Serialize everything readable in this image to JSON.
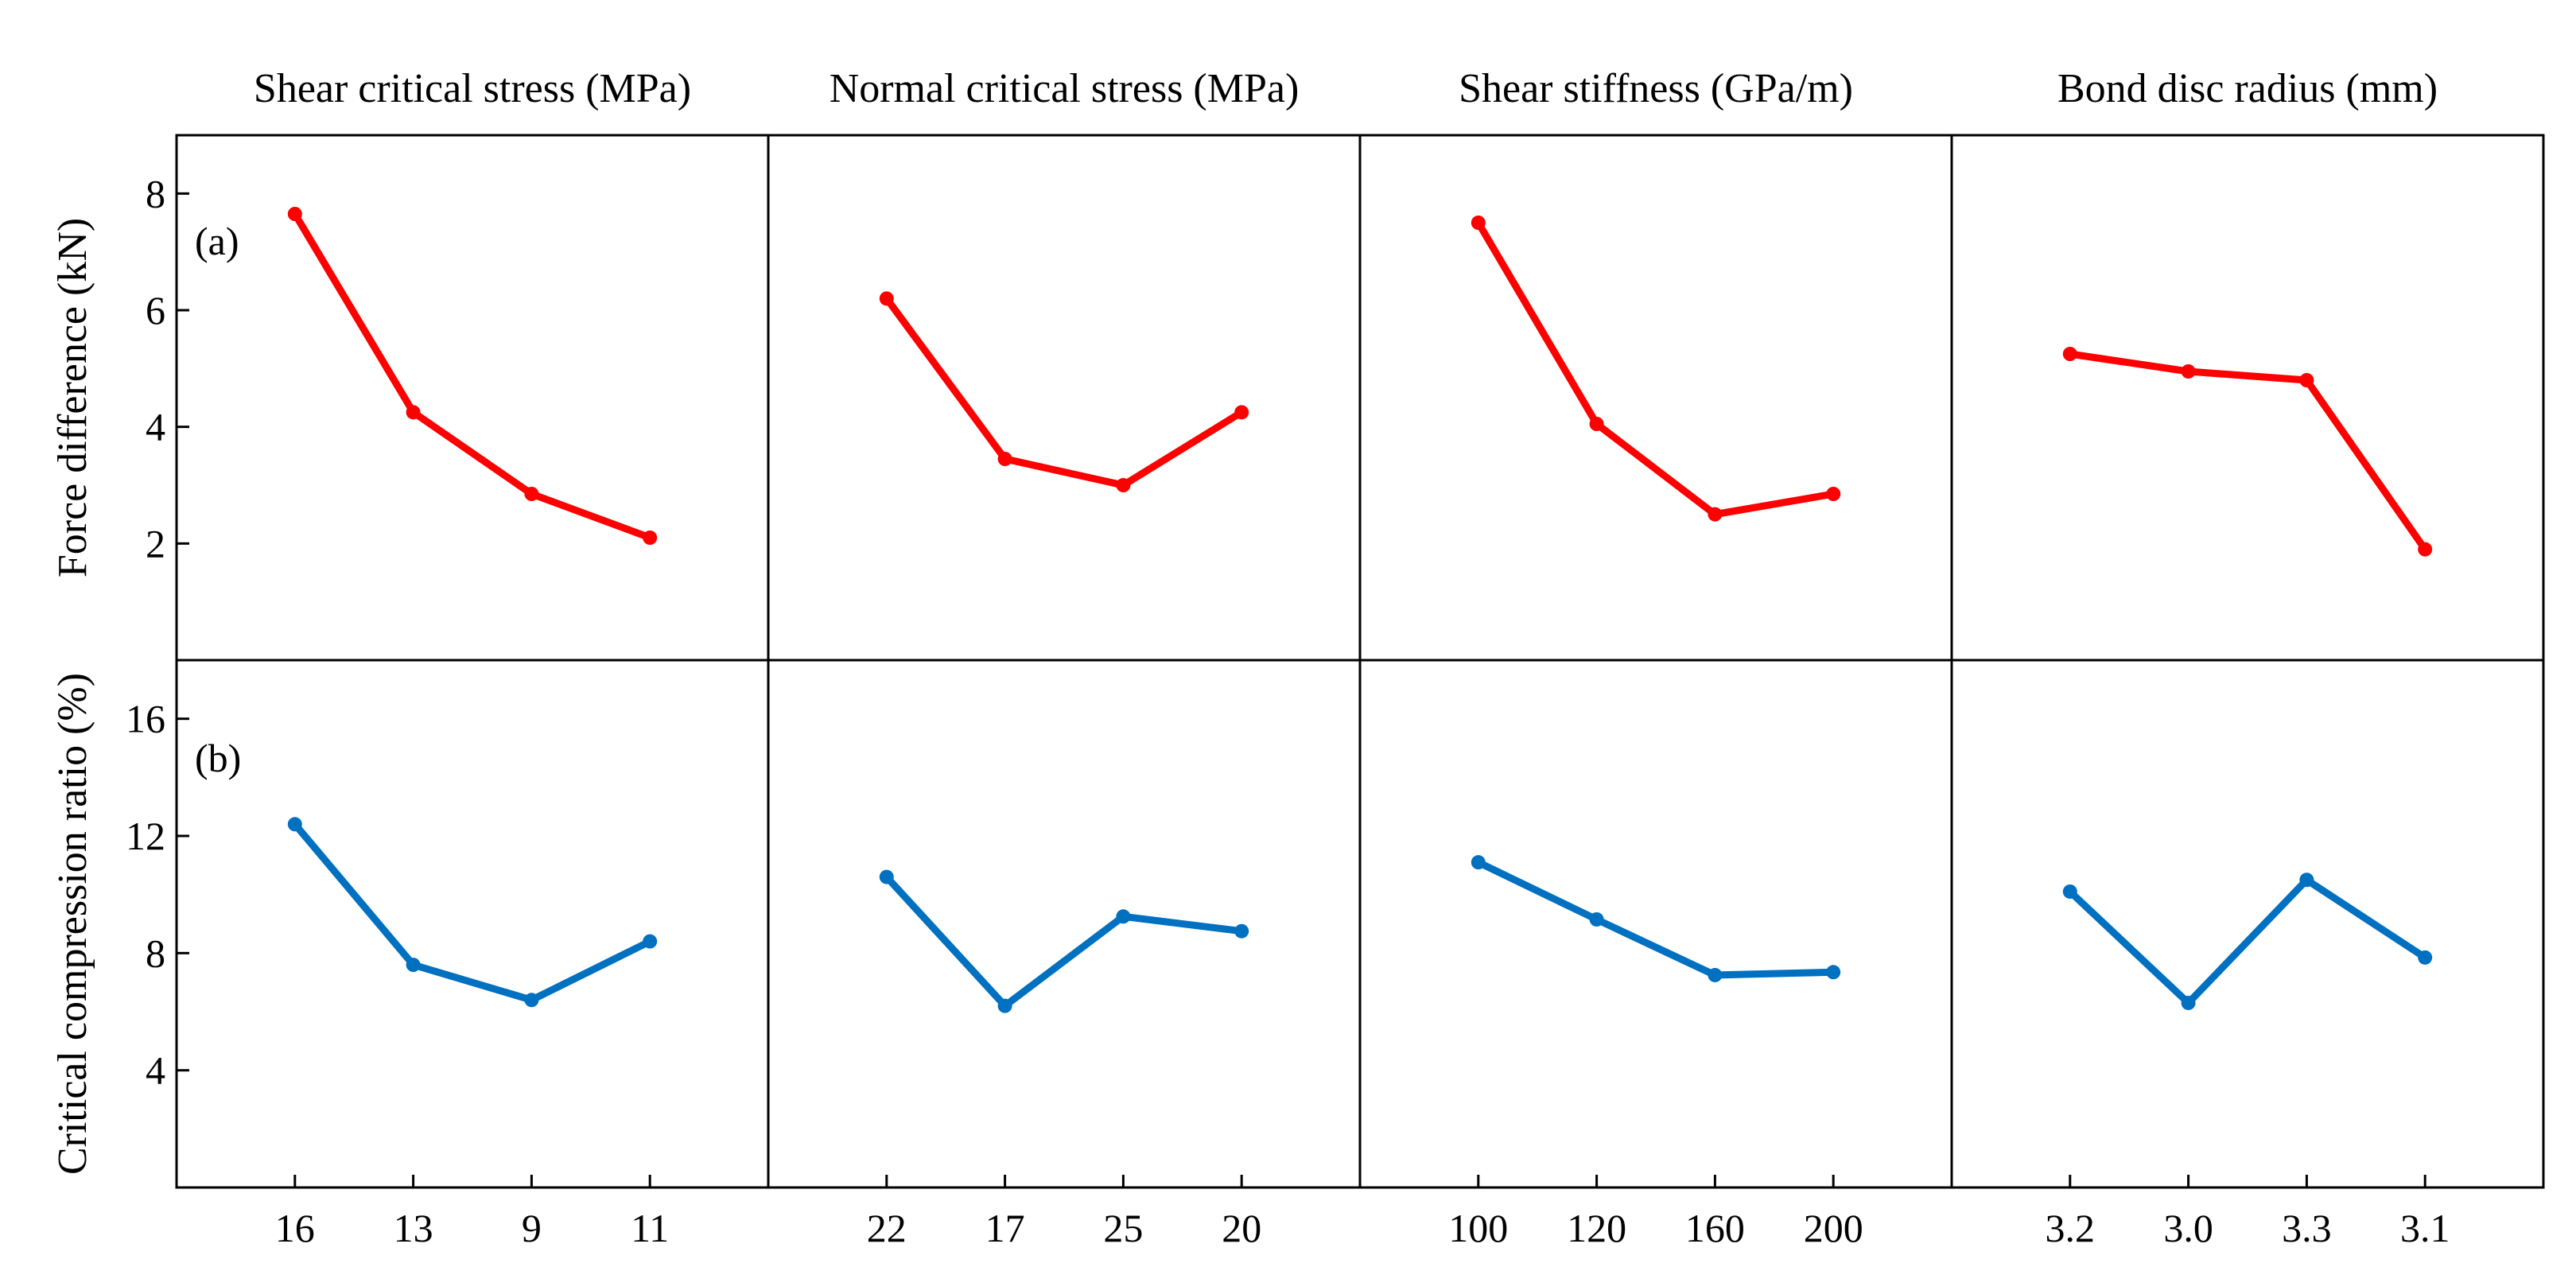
{
  "figure": {
    "column_titles": [
      "Shear critical stress (MPa)",
      "Normal critical stress (MPa)",
      "Shear stiffness (GPa/m)",
      "Bond disc radius (mm)"
    ],
    "row_labels": [
      "(a)",
      "(b)"
    ],
    "ylabels": [
      "Force difference (kN)",
      "Critical compression ratio (%)"
    ],
    "colors": {
      "top": "#ff0000",
      "bottom": "#0070c0",
      "axis": "#000000"
    }
  },
  "chart_data": [
    {
      "type": "line",
      "title": "Shear critical stress (MPa)",
      "categories": [
        "16",
        "13",
        "9",
        "11"
      ],
      "series": [
        {
          "values": [
            7.65,
            4.25,
            2.85,
            2.1
          ]
        },
        {
          "values": [
            12.4,
            7.6,
            6.4,
            8.4
          ]
        }
      ]
    },
    {
      "type": "line",
      "title": "Normal critical stress (MPa)",
      "categories": [
        "22",
        "17",
        "25",
        "20"
      ],
      "series": [
        {
          "values": [
            6.2,
            3.45,
            3.0,
            4.25
          ]
        },
        {
          "values": [
            10.6,
            6.2,
            9.25,
            8.75
          ]
        }
      ]
    },
    {
      "type": "line",
      "title": "Shear stiffness (GPa/m)",
      "categories": [
        "100",
        "120",
        "160",
        "200"
      ],
      "series": [
        {
          "values": [
            7.5,
            4.05,
            2.5,
            2.85
          ]
        },
        {
          "values": [
            11.1,
            9.15,
            7.25,
            7.35
          ]
        }
      ]
    },
    {
      "type": "line",
      "title": "Bond disc radius (mm)",
      "categories": [
        "3.2",
        "3.0",
        "3.3",
        "3.1"
      ],
      "series": [
        {
          "values": [
            5.25,
            4.95,
            4.8,
            1.9
          ]
        },
        {
          "values": [
            10.1,
            6.3,
            10.5,
            7.85
          ]
        }
      ]
    }
  ],
  "axes": {
    "top": {
      "ylim": [
        0,
        9
      ],
      "yticks": [
        2,
        4,
        6,
        8
      ],
      "ytick_labels": [
        "2",
        "4",
        "6",
        "8"
      ]
    },
    "bottom": {
      "ylim": [
        0,
        18
      ],
      "yticks": [
        4,
        8,
        12,
        16
      ],
      "ytick_labels": [
        "4",
        "8",
        "12",
        "16"
      ]
    },
    "x_positions": [
      1,
      2,
      3,
      4
    ],
    "xlim": [
      0,
      5
    ],
    "grid": false,
    "legend": "none"
  }
}
